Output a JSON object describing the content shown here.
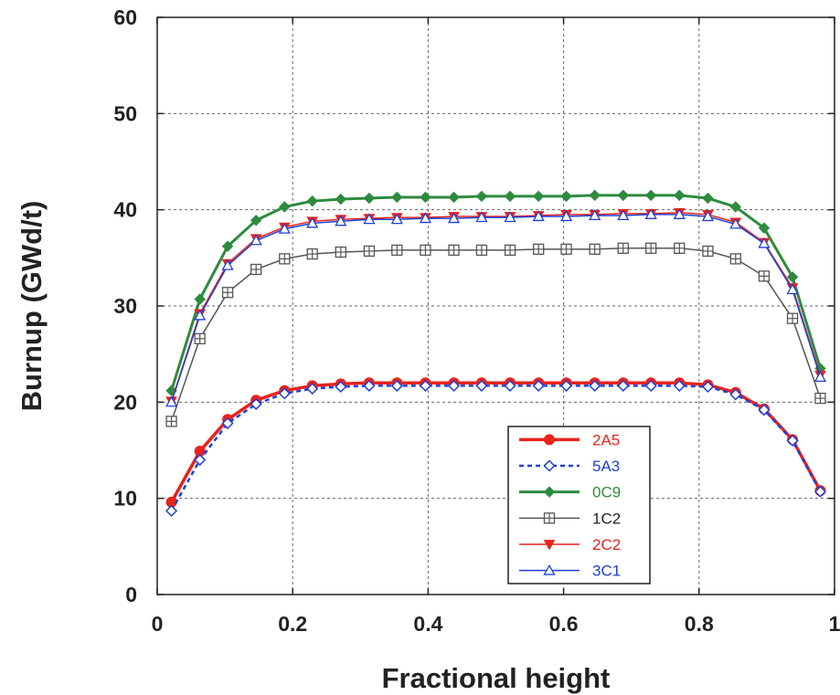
{
  "chart_data": {
    "type": "line",
    "title": "",
    "xlabel": "Fractional height",
    "ylabel": "Burnup (GWd/t)",
    "xlim": [
      0,
      1
    ],
    "ylim": [
      0,
      60
    ],
    "xticks": [
      0,
      0.2,
      0.4,
      0.6,
      0.8,
      1
    ],
    "xtick_labels": [
      "0",
      "0.2",
      "0.4",
      "0.6",
      "0.8",
      "1"
    ],
    "yticks": [
      0,
      10,
      20,
      30,
      40,
      50,
      60
    ],
    "ytick_labels": [
      "0",
      "10",
      "20",
      "30",
      "40",
      "50",
      "60"
    ],
    "grid": true,
    "legend_position": "bottom-right",
    "x": [
      0.021,
      0.063,
      0.104,
      0.146,
      0.188,
      0.229,
      0.271,
      0.313,
      0.354,
      0.396,
      0.438,
      0.479,
      0.521,
      0.563,
      0.604,
      0.646,
      0.688,
      0.729,
      0.771,
      0.813,
      0.854,
      0.896,
      0.938,
      0.979
    ],
    "series": [
      {
        "name": "2A5",
        "color": "#e8231c",
        "marker": "circle",
        "dash": "solid",
        "width": 3.5,
        "values": [
          9.6,
          14.9,
          18.2,
          20.2,
          21.2,
          21.7,
          21.9,
          22.0,
          22.0,
          22.0,
          22.0,
          22.0,
          22.0,
          22.0,
          22.0,
          22.0,
          22.0,
          22.0,
          22.0,
          21.8,
          21.0,
          19.3,
          16.1,
          10.8
        ]
      },
      {
        "name": "5A3",
        "color": "#1f3fd8",
        "marker": "diamond-open",
        "dash": "dashed",
        "width": 2.5,
        "values": [
          8.7,
          14.0,
          17.8,
          19.8,
          20.9,
          21.4,
          21.6,
          21.7,
          21.7,
          21.7,
          21.7,
          21.7,
          21.7,
          21.7,
          21.7,
          21.7,
          21.7,
          21.7,
          21.7,
          21.6,
          20.8,
          19.2,
          16.0,
          10.7
        ]
      },
      {
        "name": "0C9",
        "color": "#2e8b3e",
        "marker": "diamond",
        "dash": "solid",
        "width": 3,
        "values": [
          21.2,
          30.7,
          36.2,
          38.9,
          40.3,
          40.9,
          41.1,
          41.2,
          41.3,
          41.3,
          41.3,
          41.4,
          41.4,
          41.4,
          41.4,
          41.5,
          41.5,
          41.5,
          41.5,
          41.2,
          40.3,
          38.1,
          33.0,
          23.5
        ]
      },
      {
        "name": "1C2",
        "color": "#555555",
        "marker": "square-plus",
        "dash": "solid",
        "width": 1.5,
        "values": [
          18.0,
          26.6,
          31.4,
          33.8,
          34.9,
          35.4,
          35.6,
          35.7,
          35.8,
          35.8,
          35.8,
          35.8,
          35.8,
          35.9,
          35.9,
          35.9,
          36.0,
          36.0,
          36.0,
          35.7,
          34.9,
          33.1,
          28.7,
          20.4
        ]
      },
      {
        "name": "2C2",
        "color": "#e8231c",
        "marker": "triangle-down",
        "dash": "solid",
        "width": 1.5,
        "values": [
          20.1,
          29.2,
          34.4,
          37.0,
          38.2,
          38.8,
          39.0,
          39.1,
          39.2,
          39.2,
          39.3,
          39.3,
          39.3,
          39.4,
          39.5,
          39.5,
          39.6,
          39.6,
          39.7,
          39.5,
          38.7,
          36.6,
          31.9,
          22.8
        ]
      },
      {
        "name": "3C1",
        "color": "#1f3fd8",
        "marker": "triangle-up-open",
        "dash": "solid",
        "width": 1.5,
        "values": [
          20.0,
          29.0,
          34.2,
          36.8,
          38.0,
          38.6,
          38.8,
          39.0,
          39.0,
          39.1,
          39.1,
          39.2,
          39.2,
          39.3,
          39.3,
          39.4,
          39.4,
          39.5,
          39.5,
          39.3,
          38.5,
          36.5,
          31.7,
          22.6
        ]
      }
    ]
  }
}
